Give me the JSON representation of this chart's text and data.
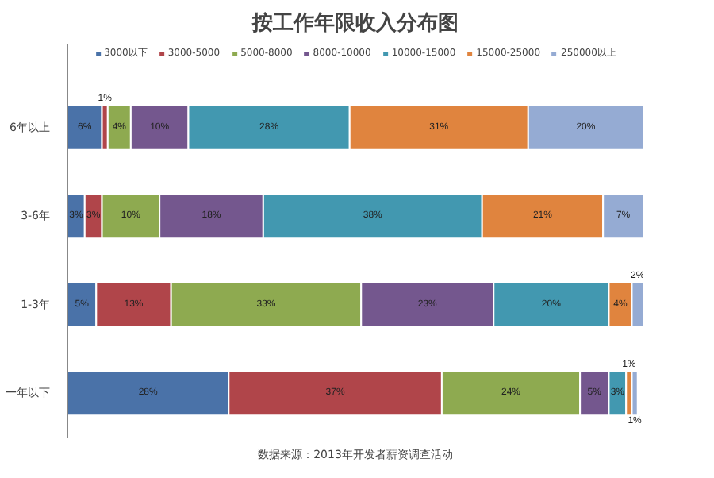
{
  "chart_data": {
    "type": "bar",
    "orientation": "horizontal",
    "stacked": true,
    "title": "按工作年限收入分布图",
    "categories": [
      "6年以上",
      "3-6年",
      "1-3年",
      "一年以下"
    ],
    "series": [
      {
        "name": "3000以下",
        "color": "#4a72a8",
        "values": [
          6,
          3,
          5,
          28
        ],
        "value_labels": [
          "6%",
          "3%",
          "5%",
          "28%"
        ]
      },
      {
        "name": "3000-5000",
        "color": "#b0454a",
        "values": [
          1,
          3,
          13,
          37
        ],
        "value_labels": [
          "1%",
          "3%",
          "13%",
          "37%"
        ]
      },
      {
        "name": "5000-8000",
        "color": "#8eaa50",
        "values": [
          4,
          10,
          33,
          24
        ],
        "value_labels": [
          "4%",
          "10%",
          "33%",
          "24%"
        ]
      },
      {
        "name": "8000-10000",
        "color": "#74578e",
        "values": [
          10,
          18,
          23,
          5
        ],
        "value_labels": [
          "10%",
          "18%",
          "23%",
          "5%"
        ]
      },
      {
        "name": "10000-15000",
        "color": "#4298b0",
        "values": [
          28,
          38,
          20,
          3
        ],
        "value_labels": [
          "28%",
          "38%",
          "20%",
          "3%"
        ]
      },
      {
        "name": "15000-25000",
        "color": "#e0843e",
        "values": [
          31,
          21,
          4,
          1
        ],
        "value_labels": [
          "31%",
          "21%",
          "4%",
          "1%"
        ]
      },
      {
        "name": "250000以上",
        "color": "#95abd3",
        "values": [
          20,
          7,
          2,
          1
        ],
        "value_labels": [
          "20%",
          "7%",
          "2%",
          "1%"
        ]
      }
    ],
    "legend": "top",
    "grid": false,
    "tick_labels": "y",
    "annotations": [
      "数据来源：2013年开发者薪资调查活动"
    ]
  }
}
